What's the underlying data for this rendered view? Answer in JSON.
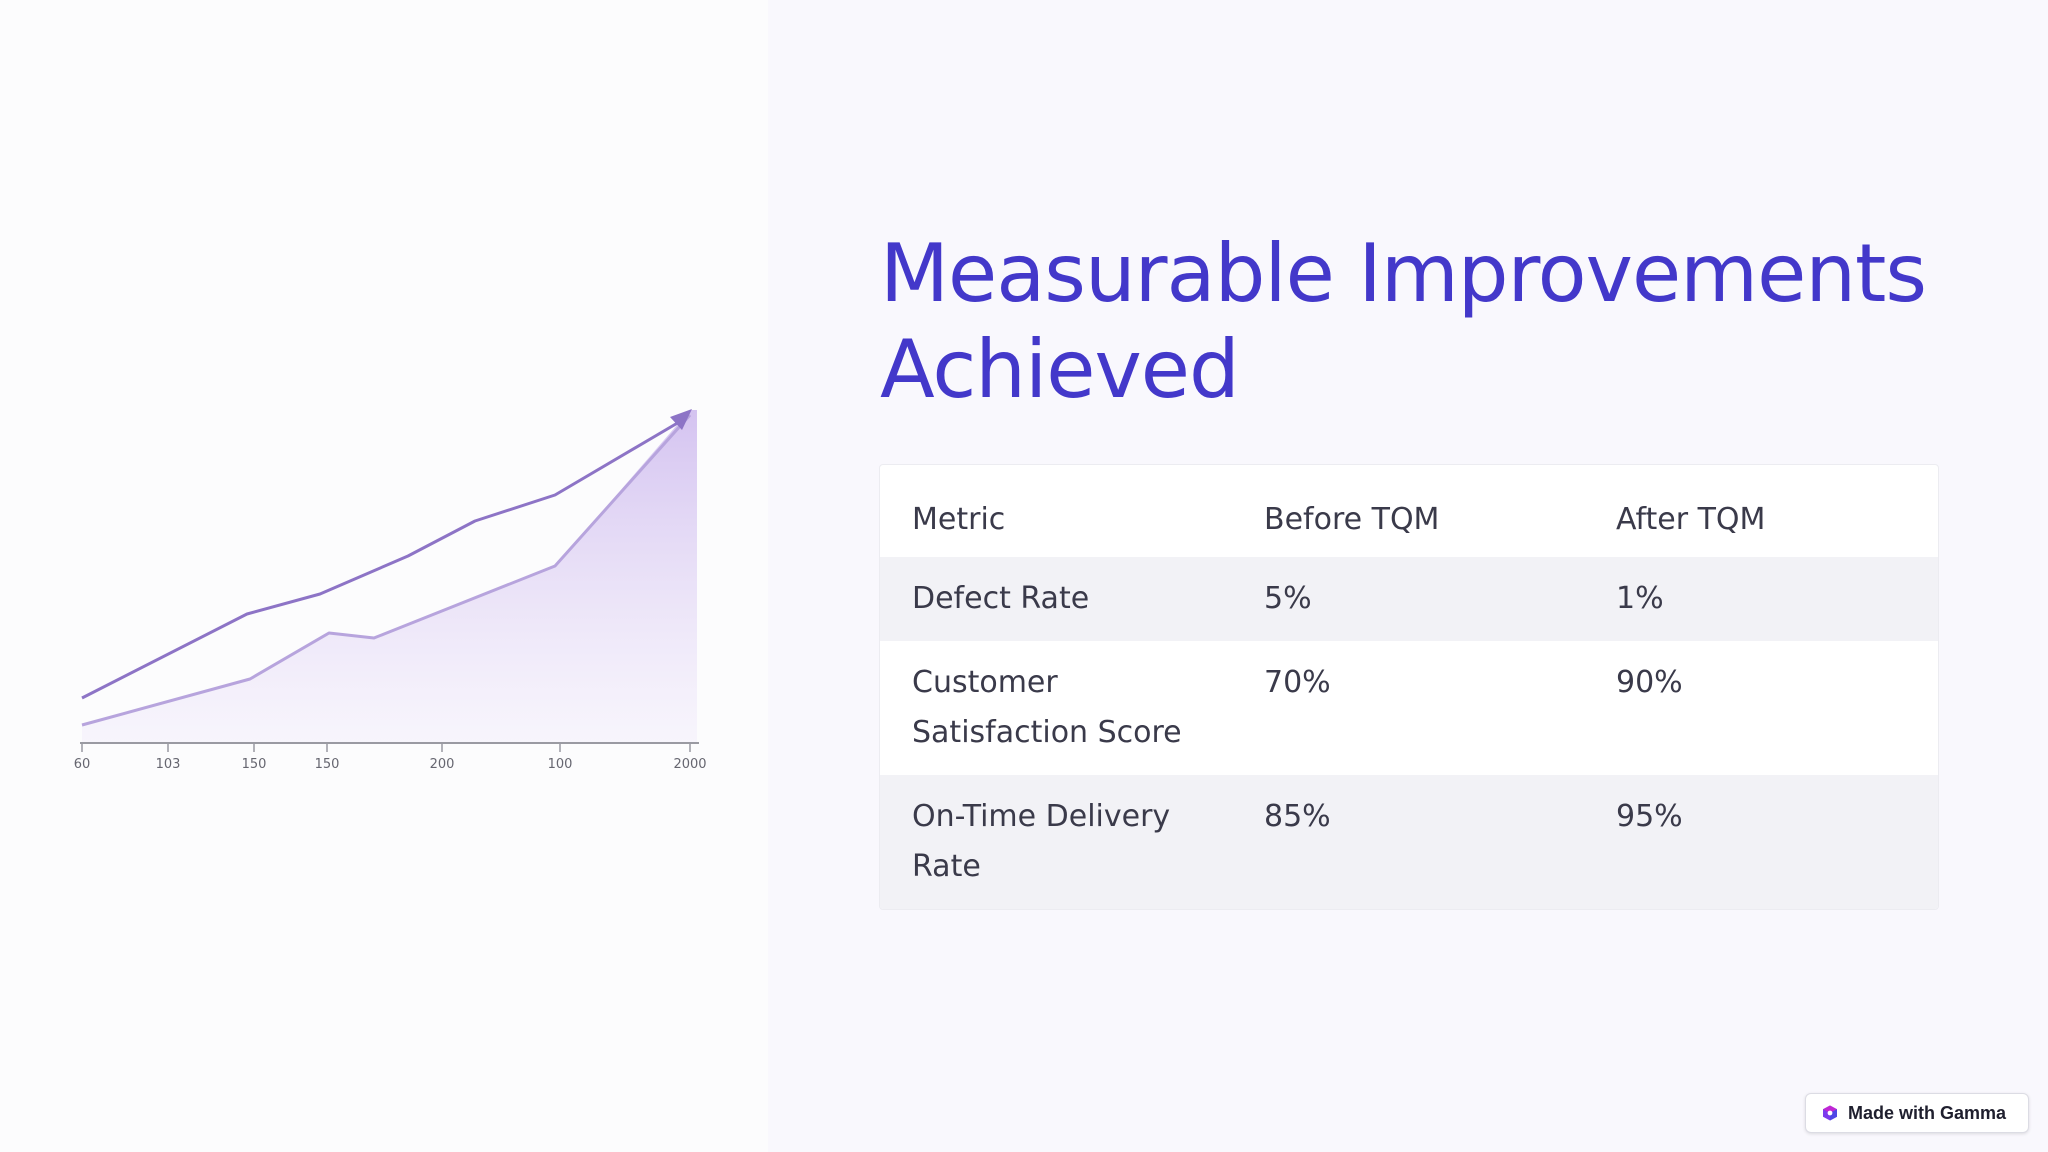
{
  "slide": {
    "title": "Measurable Improvements Achieved",
    "accent_color": "#4338ca"
  },
  "illustration": {
    "type": "line-chart-image",
    "x_tick_labels": [
      "60",
      "103",
      "150",
      "150",
      "200",
      "100",
      "2000"
    ],
    "line_color": "#8a72c4",
    "fill_color": "#e6dcf5",
    "arrow": "up-right-arrow"
  },
  "table": {
    "headers": [
      "Metric",
      "Before TQM",
      "After TQM"
    ],
    "rows": [
      [
        "Defect Rate",
        "5%",
        "1%"
      ],
      [
        "Customer Satisfaction Score",
        "70%",
        "90%"
      ],
      [
        "On-Time Delivery Rate",
        "85%",
        "95%"
      ]
    ]
  },
  "badge": {
    "label": "Made with Gamma",
    "icon": "gamma-logo-icon"
  }
}
